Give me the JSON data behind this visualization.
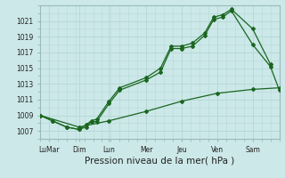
{
  "background_color": "#cce8e8",
  "grid_color": "#b8d8d8",
  "line_color": "#1a6620",
  "marker_color": "#1a6620",
  "xlabel": "Pression niveau de la mer( hPa )",
  "xlabel_fontsize": 7.5,
  "ytick_labels": [
    1007,
    1009,
    1011,
    1013,
    1015,
    1017,
    1019,
    1021
  ],
  "ylim": [
    1006.0,
    1023.0
  ],
  "xlim": [
    0,
    13.5
  ],
  "xtick_positions": [
    0.5,
    2.2,
    3.9,
    6.0,
    8.0,
    10.0,
    12.0
  ],
  "xtick_labels": [
    "LuMar",
    "Dim",
    "Lun",
    "Mer",
    "Jeu",
    "Ven",
    "Sam"
  ],
  "series1": [
    [
      0.0,
      1009.0
    ],
    [
      0.7,
      1008.3
    ],
    [
      1.5,
      1007.5
    ],
    [
      2.2,
      1007.2
    ],
    [
      2.6,
      1007.5
    ],
    [
      2.9,
      1008.2
    ],
    [
      3.2,
      1008.2
    ],
    [
      3.9,
      1010.5
    ],
    [
      4.5,
      1012.2
    ],
    [
      6.0,
      1013.5
    ],
    [
      6.8,
      1014.5
    ],
    [
      7.4,
      1017.5
    ],
    [
      8.0,
      1017.5
    ],
    [
      8.6,
      1017.8
    ],
    [
      9.3,
      1019.2
    ],
    [
      9.8,
      1021.2
    ],
    [
      10.3,
      1021.5
    ],
    [
      10.8,
      1022.3
    ],
    [
      12.0,
      1018.0
    ],
    [
      13.0,
      1015.2
    ],
    [
      13.5,
      1012.2
    ]
  ],
  "series2": [
    [
      0.0,
      1009.0
    ],
    [
      0.7,
      1008.3
    ],
    [
      1.5,
      1007.5
    ],
    [
      2.2,
      1007.2
    ],
    [
      2.6,
      1007.8
    ],
    [
      2.9,
      1008.3
    ],
    [
      3.2,
      1008.5
    ],
    [
      3.9,
      1010.8
    ],
    [
      4.5,
      1012.5
    ],
    [
      6.0,
      1013.8
    ],
    [
      6.8,
      1015.0
    ],
    [
      7.4,
      1017.8
    ],
    [
      8.0,
      1017.8
    ],
    [
      8.6,
      1018.2
    ],
    [
      9.3,
      1019.5
    ],
    [
      9.8,
      1021.5
    ],
    [
      10.3,
      1021.8
    ],
    [
      10.8,
      1022.5
    ],
    [
      12.0,
      1020.0
    ],
    [
      13.0,
      1015.5
    ]
  ],
  "series3": [
    [
      0.0,
      1009.0
    ],
    [
      2.2,
      1007.5
    ],
    [
      3.9,
      1008.3
    ],
    [
      6.0,
      1009.5
    ],
    [
      8.0,
      1010.8
    ],
    [
      10.0,
      1011.8
    ],
    [
      12.0,
      1012.3
    ],
    [
      13.5,
      1012.5
    ]
  ]
}
